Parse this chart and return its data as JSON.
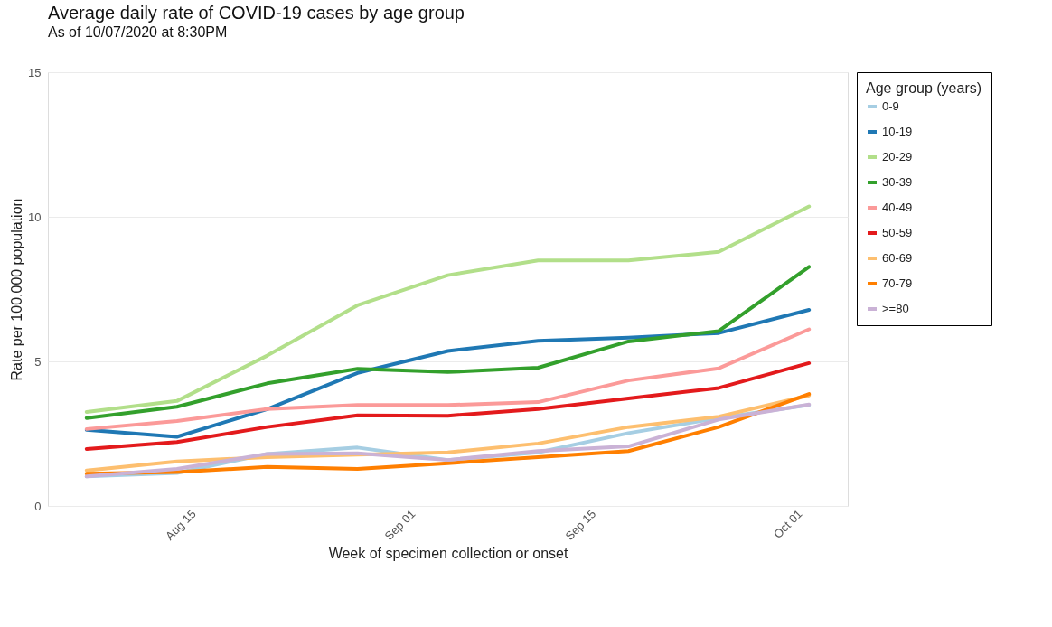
{
  "chart_data": {
    "type": "line",
    "title": "Average daily rate of COVID-19 cases by age group",
    "subtitle": "As of 10/07/2020 at 8:30PM",
    "xlabel": "Week of specimen collection or onset",
    "ylabel": "Rate per 100,000 population",
    "legend_title": "Age group (years)",
    "x": [
      "2020-08-07",
      "2020-08-14",
      "2020-08-21",
      "2020-08-28",
      "2020-09-04",
      "2020-09-11",
      "2020-09-18",
      "2020-09-25",
      "2020-10-02"
    ],
    "series": [
      {
        "name": "0-9",
        "color": "#a6cee3",
        "values": [
          1.02,
          1.14,
          1.8,
          2.02,
          1.59,
          1.85,
          2.52,
          3.04,
          3.49
        ]
      },
      {
        "name": "10-19",
        "color": "#1f78b4",
        "values": [
          2.63,
          2.39,
          3.35,
          4.6,
          5.36,
          5.71,
          5.82,
          5.98,
          6.78
        ]
      },
      {
        "name": "20-29",
        "color": "#b2df8a",
        "values": [
          3.25,
          3.63,
          5.2,
          6.94,
          7.98,
          8.49,
          8.49,
          8.79,
          10.36
        ]
      },
      {
        "name": "30-39",
        "color": "#33a02c",
        "values": [
          3.04,
          3.43,
          4.24,
          4.74,
          4.63,
          4.78,
          5.69,
          6.05,
          8.27
        ]
      },
      {
        "name": "40-49",
        "color": "#fb9a99",
        "values": [
          2.66,
          2.94,
          3.35,
          3.49,
          3.49,
          3.59,
          4.34,
          4.76,
          6.11
        ]
      },
      {
        "name": "50-59",
        "color": "#e31a1c",
        "values": [
          1.97,
          2.21,
          2.73,
          3.13,
          3.12,
          3.35,
          3.72,
          4.08,
          4.94
        ]
      },
      {
        "name": "60-69",
        "color": "#fdbf6f",
        "values": [
          1.23,
          1.54,
          1.69,
          1.77,
          1.85,
          2.16,
          2.73,
          3.09,
          3.82
        ]
      },
      {
        "name": "70-79",
        "color": "#ff7f00",
        "values": [
          1.12,
          1.17,
          1.35,
          1.28,
          1.48,
          1.69,
          1.9,
          2.73,
          3.87
        ]
      },
      {
        "name": ">=80",
        "color": "#cab2d6",
        "values": [
          1.02,
          1.28,
          1.8,
          1.82,
          1.59,
          1.9,
          2.06,
          2.99,
          3.51
        ]
      }
    ],
    "xlim": [
      "2020-08-04",
      "2020-10-05"
    ],
    "xticks": [
      {
        "value": "2020-08-15",
        "label": "Aug 15"
      },
      {
        "value": "2020-09-01",
        "label": "Sep 01"
      },
      {
        "value": "2020-09-15",
        "label": "Sep 15"
      },
      {
        "value": "2020-10-01",
        "label": "Oct 01"
      }
    ],
    "ylim": [
      0,
      15
    ],
    "yticks": [
      0,
      5,
      10,
      15
    ],
    "grid": "y",
    "legend": "right",
    "marker": "none",
    "line_style": "solid"
  }
}
